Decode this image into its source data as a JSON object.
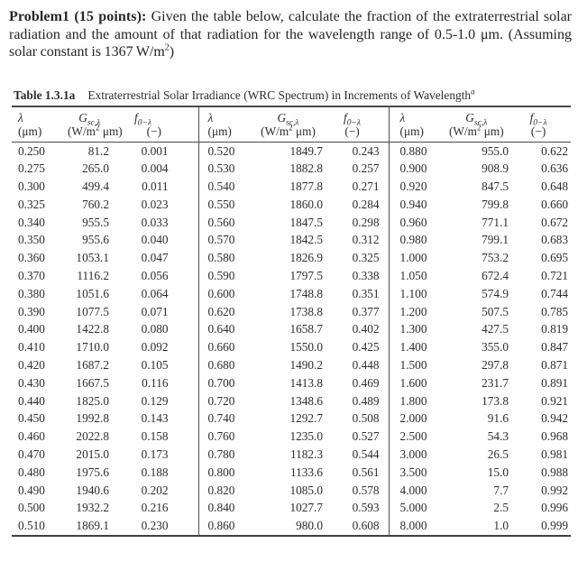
{
  "problem": {
    "label": "Problem1 (15 points):",
    "body": "Given the table below, calculate the fraction of the extraterrestrial solar radiation and the amount of that radiation for the wavelength range of 0.5-1.0 μm. (Assuming solar constant is 1367 W/m",
    "solar_constant_sup": "2",
    "tail": ")"
  },
  "table": {
    "title_label": "Table 1.3.1a",
    "title_text": "Extraterrestrial Solar Irradiance (WRC Spectrum) in Increments of Wavelength",
    "title_sup": "a",
    "header": {
      "lambda_symbol": "λ",
      "lambda_unit": "(μm)",
      "g_symbol": "G",
      "g_sub": "sc,λ",
      "g_unit_pre": "(W/m",
      "g_unit_sup": "2",
      "g_unit_post": " μm)",
      "f_symbol": "f",
      "f_sub": "0−λ",
      "f_unit": "(−)"
    },
    "groups": [
      {
        "rows": [
          [
            "0.250",
            "81.2",
            "0.001"
          ],
          [
            "0.275",
            "265.0",
            "0.004"
          ],
          [
            "0.300",
            "499.4",
            "0.011"
          ],
          [
            "0.325",
            "760.2",
            "0.023"
          ],
          [
            "0.340",
            "955.5",
            "0.033"
          ],
          [
            "0.350",
            "955.6",
            "0.040"
          ],
          [
            "0.360",
            "1053.1",
            "0.047"
          ],
          [
            "0.370",
            "1116.2",
            "0.056"
          ],
          [
            "0.380",
            "1051.6",
            "0.064"
          ],
          [
            "0.390",
            "1077.5",
            "0.071"
          ],
          [
            "0.400",
            "1422.8",
            "0.080"
          ],
          [
            "0.410",
            "1710.0",
            "0.092"
          ],
          [
            "0.420",
            "1687.2",
            "0.105"
          ],
          [
            "0.430",
            "1667.5",
            "0.116"
          ],
          [
            "0.440",
            "1825.0",
            "0.129"
          ],
          [
            "0.450",
            "1992.8",
            "0.143"
          ],
          [
            "0.460",
            "2022.8",
            "0.158"
          ],
          [
            "0.470",
            "2015.0",
            "0.173"
          ],
          [
            "0.480",
            "1975.6",
            "0.188"
          ],
          [
            "0.490",
            "1940.6",
            "0.202"
          ],
          [
            "0.500",
            "1932.2",
            "0.216"
          ],
          [
            "0.510",
            "1869.1",
            "0.230"
          ]
        ]
      },
      {
        "rows": [
          [
            "0.520",
            "1849.7",
            "0.243"
          ],
          [
            "0.530",
            "1882.8",
            "0.257"
          ],
          [
            "0.540",
            "1877.8",
            "0.271"
          ],
          [
            "0.550",
            "1860.0",
            "0.284"
          ],
          [
            "0.560",
            "1847.5",
            "0.298"
          ],
          [
            "0.570",
            "1842.5",
            "0.312"
          ],
          [
            "0.580",
            "1826.9",
            "0.325"
          ],
          [
            "0.590",
            "1797.5",
            "0.338"
          ],
          [
            "0.600",
            "1748.8",
            "0.351"
          ],
          [
            "0.620",
            "1738.8",
            "0.377"
          ],
          [
            "0.640",
            "1658.7",
            "0.402"
          ],
          [
            "0.660",
            "1550.0",
            "0.425"
          ],
          [
            "0.680",
            "1490.2",
            "0.448"
          ],
          [
            "0.700",
            "1413.8",
            "0.469"
          ],
          [
            "0.720",
            "1348.6",
            "0.489"
          ],
          [
            "0.740",
            "1292.7",
            "0.508"
          ],
          [
            "0.760",
            "1235.0",
            "0.527"
          ],
          [
            "0.780",
            "1182.3",
            "0.544"
          ],
          [
            "0.800",
            "1133.6",
            "0.561"
          ],
          [
            "0.820",
            "1085.0",
            "0.578"
          ],
          [
            "0.840",
            "1027.7",
            "0.593"
          ],
          [
            "0.860",
            "980.0",
            "0.608"
          ]
        ]
      },
      {
        "rows": [
          [
            "0.880",
            "955.0",
            "0.622"
          ],
          [
            "0.900",
            "908.9",
            "0.636"
          ],
          [
            "0.920",
            "847.5",
            "0.648"
          ],
          [
            "0.940",
            "799.8",
            "0.660"
          ],
          [
            "0.960",
            "771.1",
            "0.672"
          ],
          [
            "0.980",
            "799.1",
            "0.683"
          ],
          [
            "1.000",
            "753.2",
            "0.695"
          ],
          [
            "1.050",
            "672.4",
            "0.721"
          ],
          [
            "1.100",
            "574.9",
            "0.744"
          ],
          [
            "1.200",
            "507.5",
            "0.785"
          ],
          [
            "1.300",
            "427.5",
            "0.819"
          ],
          [
            "1.400",
            "355.0",
            "0.847"
          ],
          [
            "1.500",
            "297.8",
            "0.871"
          ],
          [
            "1.600",
            "231.7",
            "0.891"
          ],
          [
            "1.800",
            "173.8",
            "0.921"
          ],
          [
            "2.000",
            "91.6",
            "0.942"
          ],
          [
            "2.500",
            "54.3",
            "0.968"
          ],
          [
            "3.000",
            "26.5",
            "0.981"
          ],
          [
            "3.500",
            "15.0",
            "0.988"
          ],
          [
            "4.000",
            "7.7",
            "0.992"
          ],
          [
            "5.000",
            "2.5",
            "0.996"
          ],
          [
            "8.000",
            "1.0",
            "0.999"
          ]
        ]
      }
    ]
  }
}
